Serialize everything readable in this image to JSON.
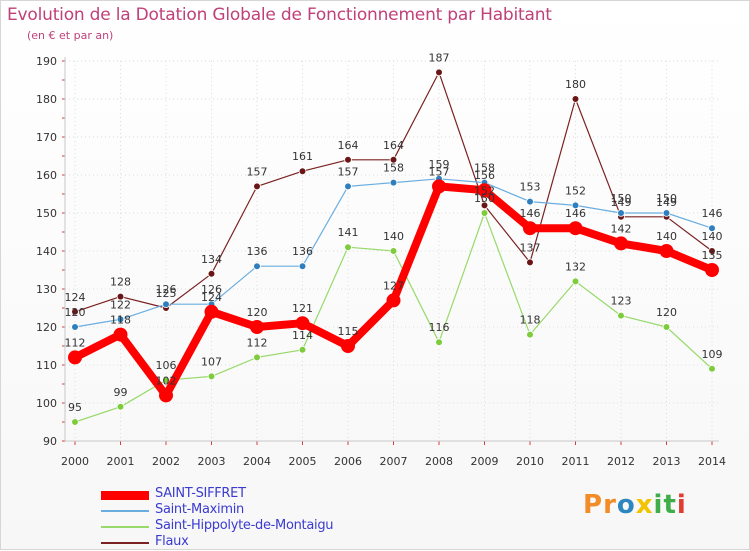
{
  "title": "Evolution de la Dotation Globale de Fonctionnement par Habitant",
  "subtitle": "(en € et par an)",
  "logo": {
    "text": "Proxiti",
    "letters": [
      "P",
      "r",
      "o",
      "x",
      "i",
      "t",
      "i"
    ],
    "colors": [
      "#f28c28",
      "#f28c28",
      "#2e86c1",
      "#f2c300",
      "#3fae49",
      "#3fae49",
      "#e03c31"
    ]
  },
  "chart_data": {
    "type": "line",
    "x": [
      2000,
      2001,
      2002,
      2003,
      2004,
      2005,
      2006,
      2007,
      2008,
      2009,
      2010,
      2011,
      2012,
      2013,
      2014
    ],
    "yticks": [
      90,
      100,
      110,
      120,
      130,
      140,
      150,
      160,
      170,
      180,
      190
    ],
    "ylim": [
      90,
      190
    ],
    "grid": true,
    "legend_position": "bottom-left",
    "series": [
      {
        "name": "Flaux",
        "color": "#7b2121",
        "point": "#6a1616",
        "width": 1.2,
        "values": [
          124,
          128,
          125,
          134,
          157,
          161,
          164,
          164,
          187,
          152,
          137,
          180,
          149,
          149,
          140
        ]
      },
      {
        "name": "Saint-Maximin",
        "color": "#6aaee0",
        "point": "#2f7fbf",
        "width": 1.2,
        "values": [
          120,
          122,
          126,
          126,
          136,
          136,
          157,
          158,
          159,
          158,
          153,
          152,
          150,
          150,
          146
        ]
      },
      {
        "name": "Saint-Hippolyte-de-Montaigu",
        "color": "#98d96b",
        "point": "#7ccc3c",
        "width": 1.2,
        "values": [
          95,
          99,
          106,
          107,
          112,
          114,
          141,
          140,
          116,
          150,
          118,
          132,
          123,
          120,
          109
        ]
      },
      {
        "name": "SAINT-SIFFRET",
        "color": "#ff0000",
        "point": "#ff0000",
        "width": 8,
        "values": [
          112,
          118,
          102,
          124,
          120,
          121,
          115,
          127,
          157,
          156,
          146,
          146,
          142,
          140,
          135
        ]
      }
    ],
    "legend_order": [
      "SAINT-SIFFRET",
      "Saint-Maximin",
      "Saint-Hippolyte-de-Montaigu",
      "Flaux"
    ]
  }
}
